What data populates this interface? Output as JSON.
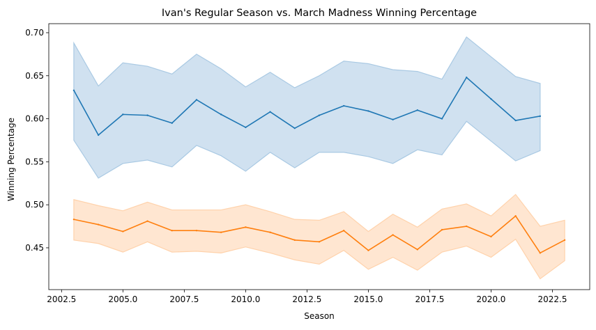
{
  "chart_data": {
    "type": "line",
    "title": "Ivan's Regular Season vs. March Madness Winning Percentage",
    "xlabel": "Season",
    "ylabel": "Winning Percentage",
    "xlim": [
      2001.98,
      2024.02
    ],
    "ylim": [
      0.4014,
      0.7105
    ],
    "xticks": [
      2002.5,
      2005.0,
      2007.5,
      2010.0,
      2012.5,
      2015.0,
      2017.5,
      2020.0,
      2022.5
    ],
    "xtick_labels": [
      "2002.5",
      "2005.0",
      "2007.5",
      "2010.0",
      "2012.5",
      "2015.0",
      "2017.5",
      "2020.0",
      "2022.5"
    ],
    "yticks": [
      0.45,
      0.5,
      0.55,
      0.6,
      0.65,
      0.7
    ],
    "ytick_labels": [
      "0.45",
      "0.50",
      "0.55",
      "0.60",
      "0.65",
      "0.70"
    ],
    "grid": false,
    "series": [
      {
        "color": "#1f77b4",
        "band_color": "#a9c9e3",
        "x": [
          2003,
          2004,
          2005,
          2006,
          2007,
          2008,
          2009,
          2010,
          2011,
          2012,
          2013,
          2014,
          2015,
          2016,
          2017,
          2018,
          2019,
          2020,
          2021,
          2022
        ],
        "values": [
          0.633,
          0.581,
          0.605,
          0.604,
          0.595,
          0.622,
          0.605,
          0.59,
          0.608,
          0.589,
          0.604,
          0.615,
          0.609,
          0.599,
          0.61,
          0.6,
          0.648,
          0.623,
          0.598,
          0.603
        ],
        "lower": [
          0.575,
          0.531,
          0.548,
          0.552,
          0.544,
          0.569,
          0.557,
          0.539,
          0.561,
          0.543,
          0.561,
          0.561,
          0.556,
          0.548,
          0.564,
          0.558,
          0.597,
          0.574,
          0.551,
          0.563
        ],
        "upper": [
          0.688,
          0.638,
          0.665,
          0.661,
          0.652,
          0.675,
          0.658,
          0.637,
          0.654,
          0.636,
          0.65,
          0.667,
          0.664,
          0.657,
          0.655,
          0.646,
          0.695,
          0.672,
          0.649,
          0.641
        ]
      },
      {
        "color": "#ff7f0e",
        "band_color": "#ffd2ab",
        "x": [
          2003,
          2004,
          2005,
          2006,
          2007,
          2008,
          2009,
          2010,
          2011,
          2012,
          2013,
          2014,
          2015,
          2016,
          2017,
          2018,
          2019,
          2020,
          2021,
          2022,
          2023
        ],
        "values": [
          0.483,
          0.477,
          0.469,
          0.481,
          0.47,
          0.47,
          0.468,
          0.474,
          0.468,
          0.459,
          0.457,
          0.47,
          0.447,
          0.465,
          0.448,
          0.471,
          0.475,
          0.463,
          0.487,
          0.444,
          0.459
        ],
        "lower": [
          0.459,
          0.455,
          0.445,
          0.457,
          0.445,
          0.446,
          0.444,
          0.451,
          0.444,
          0.436,
          0.431,
          0.447,
          0.425,
          0.439,
          0.424,
          0.445,
          0.452,
          0.439,
          0.46,
          0.414,
          0.435
        ],
        "upper": [
          0.506,
          0.499,
          0.493,
          0.503,
          0.494,
          0.494,
          0.494,
          0.5,
          0.492,
          0.483,
          0.482,
          0.492,
          0.469,
          0.489,
          0.474,
          0.495,
          0.501,
          0.487,
          0.512,
          0.475,
          0.482
        ]
      }
    ]
  }
}
